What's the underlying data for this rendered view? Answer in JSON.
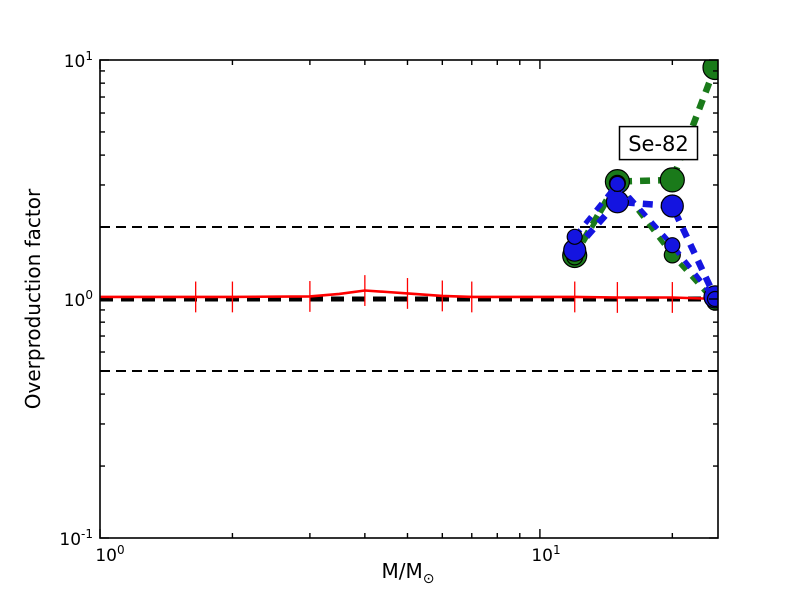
{
  "figure": {
    "bg": "#ffffff"
  },
  "axis": {
    "ylabel": "Overproduction factor",
    "xlabel_main": "M/M",
    "xlabel_sun": "⊙",
    "ytick_top_base": "10",
    "ytick_top_exp": "1",
    "ytick_mid_base": "10",
    "ytick_mid_exp": "0",
    "ytick_bot_base": "10",
    "ytick_bot_exp": "-1",
    "xtick_left_base": "10",
    "xtick_left_exp": "0",
    "xtick_right_base": "10",
    "xtick_right_exp": "1"
  },
  "chart_data": {
    "type": "line",
    "title": "",
    "xlabel": "M/M☉",
    "ylabel": "Overproduction factor",
    "x_scale": "log",
    "y_scale": "log",
    "xlim": [
      1,
      25.4
    ],
    "ylim": [
      0.1,
      10
    ],
    "grid": false,
    "legend": "none",
    "x_major_ticks": [
      1,
      10
    ],
    "x_minor_ticks": [
      2,
      3,
      4,
      5,
      6,
      7,
      8,
      9,
      20
    ],
    "y_major_ticks": [
      0.1,
      1,
      10
    ],
    "y_minor_ticks": [
      0.2,
      0.3,
      0.4,
      0.5,
      0.6,
      0.7,
      0.8,
      0.9,
      2,
      3,
      4,
      5,
      6,
      7,
      8,
      9
    ],
    "annotation": {
      "text": "Se-82",
      "x": 18.6,
      "y": 4.47
    },
    "reference_lines": [
      {
        "name": "band-upper",
        "y": 2.0,
        "color": "#000000",
        "width": 2,
        "dash": "10 6"
      },
      {
        "name": "band-lower",
        "y": 0.5,
        "color": "#000000",
        "width": 2,
        "dash": "10 6"
      },
      {
        "name": "unity",
        "y": 1.0,
        "color": "#000000",
        "width": 5,
        "dash": "13 8"
      }
    ],
    "series": [
      {
        "name": "solar-red",
        "color": "#ff0000",
        "style": "solid",
        "width": 2.6,
        "marker": "none",
        "marker_radius": 0,
        "x": [
          1,
          1.65,
          2,
          3,
          3.5,
          4,
          4.5,
          5,
          6,
          7,
          12,
          15,
          20,
          25.4
        ],
        "y": [
          1.02,
          1.02,
          1.02,
          1.025,
          1.05,
          1.085,
          1.07,
          1.055,
          1.03,
          1.02,
          1.02,
          1.015,
          1.015,
          1.0
        ],
        "errorbar_x": [
          1.65,
          2,
          3,
          4,
          5,
          6,
          7,
          12,
          15,
          20
        ],
        "errorbar_factor": 1.16
      },
      {
        "name": "green-upper",
        "color": "#1a7a1a",
        "style": "dashed",
        "width": 6.5,
        "dash": "10 8",
        "marker": "circle",
        "marker_radius": 12,
        "x": [
          12,
          15,
          20,
          25
        ],
        "y": [
          1.52,
          3.1,
          3.15,
          9.3
        ]
      },
      {
        "name": "green-lower",
        "color": "#1a7a1a",
        "style": "dashed",
        "width": 5,
        "dash": "9 8",
        "marker": "circle",
        "marker_radius": 8,
        "x": [
          12,
          15,
          20,
          25
        ],
        "y": [
          1.5,
          3.05,
          1.53,
          0.97
        ]
      },
      {
        "name": "blue-upper",
        "color": "#1414e0",
        "style": "dashed",
        "width": 6.5,
        "dash": "10 8",
        "marker": "circle",
        "marker_radius": 11,
        "x": [
          12,
          15,
          20,
          25
        ],
        "y": [
          1.6,
          2.55,
          2.45,
          1.02
        ]
      },
      {
        "name": "blue-lower",
        "color": "#1414e0",
        "style": "dashed",
        "width": 5,
        "dash": "9 8",
        "marker": "circle",
        "marker_radius": 7.5,
        "x": [
          12,
          15,
          20,
          25
        ],
        "y": [
          1.82,
          3.03,
          1.68,
          1.0
        ]
      }
    ]
  }
}
